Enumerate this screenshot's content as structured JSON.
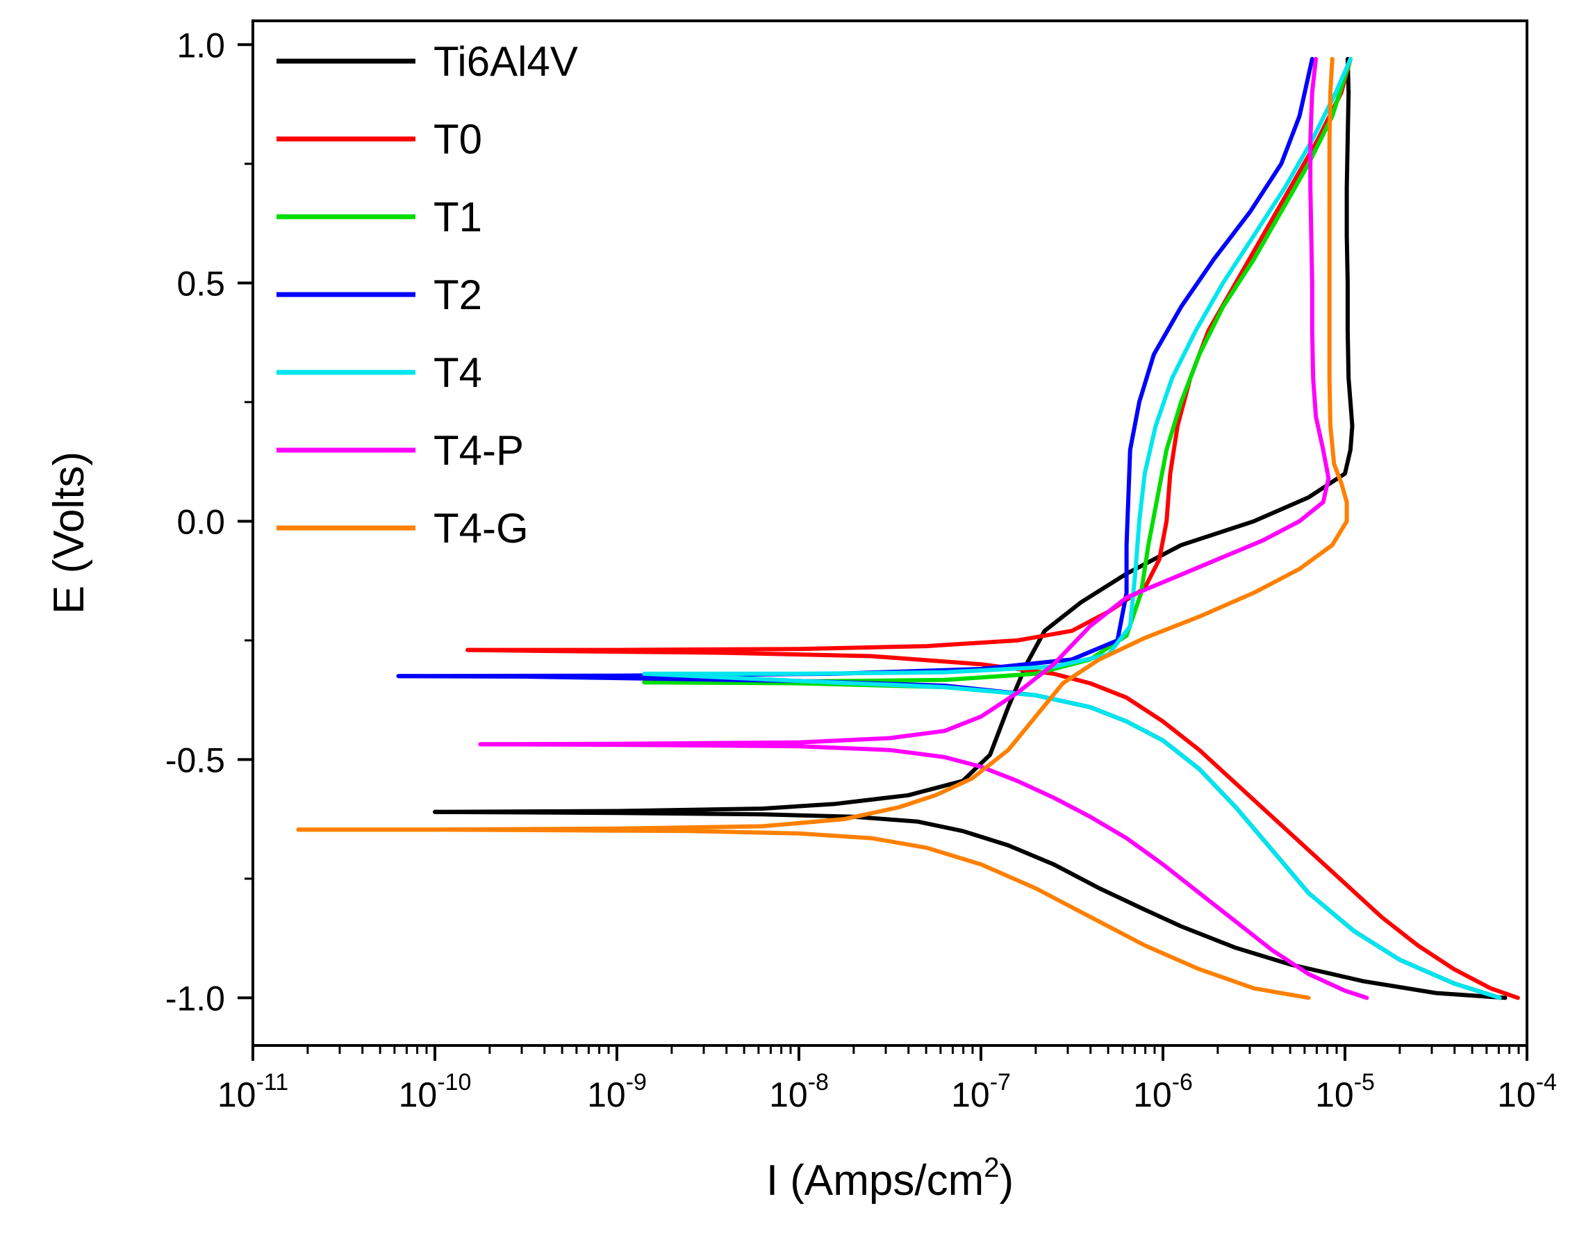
{
  "chart_data": {
    "type": "line",
    "title": "",
    "xlabel": "I (Amps/cm",
    "xlabel_sup": "2",
    "xlabel_suffix": ")",
    "ylabel": "E (Volts)",
    "xscale": "log",
    "xlim_exp": [
      -11,
      -4
    ],
    "ylim": [
      -1.1,
      1.05
    ],
    "x_ticks": [
      {
        "base": "10",
        "exp": "-11"
      },
      {
        "base": "10",
        "exp": "-10"
      },
      {
        "base": "10",
        "exp": "-9"
      },
      {
        "base": "10",
        "exp": "-8"
      },
      {
        "base": "10",
        "exp": "-7"
      },
      {
        "base": "10",
        "exp": "-6"
      },
      {
        "base": "10",
        "exp": "-5"
      },
      {
        "base": "10",
        "exp": "-4"
      }
    ],
    "y_ticks": [
      {
        "value": 1.0,
        "label": "1.0"
      },
      {
        "value": 0.5,
        "label": "0.5"
      },
      {
        "value": 0.0,
        "label": "0.0"
      },
      {
        "value": -0.5,
        "label": "-0.5"
      },
      {
        "value": -1.0,
        "label": "-1.0"
      }
    ],
    "legend_position": "top-left",
    "series": [
      {
        "name": "Ti6Al4V",
        "color": "#000000",
        "cathodic": [
          [
            -4.12,
            -1.0
          ],
          [
            -4.5,
            -0.99
          ],
          [
            -4.9,
            -0.965
          ],
          [
            -5.3,
            -0.93
          ],
          [
            -5.6,
            -0.895
          ],
          [
            -5.9,
            -0.85
          ],
          [
            -6.1,
            -0.815
          ],
          [
            -6.35,
            -0.77
          ],
          [
            -6.6,
            -0.72
          ],
          [
            -6.85,
            -0.68
          ],
          [
            -7.1,
            -0.65
          ],
          [
            -7.35,
            -0.63
          ],
          [
            -7.7,
            -0.62
          ],
          [
            -8.2,
            -0.615
          ],
          [
            -9.0,
            -0.612
          ],
          [
            -10.0,
            -0.61
          ]
        ],
        "anodic": [
          [
            -10.0,
            -0.61
          ],
          [
            -9.0,
            -0.608
          ],
          [
            -8.2,
            -0.603
          ],
          [
            -7.8,
            -0.593
          ],
          [
            -7.4,
            -0.575
          ],
          [
            -7.1,
            -0.545
          ],
          [
            -6.95,
            -0.49
          ],
          [
            -6.85,
            -0.39
          ],
          [
            -6.75,
            -0.3
          ],
          [
            -6.65,
            -0.23
          ],
          [
            -6.45,
            -0.17
          ],
          [
            -6.2,
            -0.11
          ],
          [
            -5.9,
            -0.05
          ],
          [
            -5.5,
            0.0
          ],
          [
            -5.2,
            0.05
          ],
          [
            -5.0,
            0.1
          ],
          [
            -4.97,
            0.15
          ],
          [
            -4.96,
            0.2
          ],
          [
            -4.97,
            0.25
          ],
          [
            -4.98,
            0.3
          ],
          [
            -4.985,
            0.4
          ],
          [
            -4.985,
            0.5
          ],
          [
            -4.99,
            0.6
          ],
          [
            -4.99,
            0.7
          ],
          [
            -4.985,
            0.8
          ],
          [
            -4.98,
            0.9
          ],
          [
            -4.985,
            0.97
          ]
        ]
      },
      {
        "name": "T0",
        "color": "#ff0000",
        "cathodic": [
          [
            -4.05,
            -1.0
          ],
          [
            -4.2,
            -0.98
          ],
          [
            -4.4,
            -0.94
          ],
          [
            -4.6,
            -0.89
          ],
          [
            -4.8,
            -0.83
          ],
          [
            -5.0,
            -0.76
          ],
          [
            -5.2,
            -0.69
          ],
          [
            -5.4,
            -0.62
          ],
          [
            -5.6,
            -0.55
          ],
          [
            -5.8,
            -0.48
          ],
          [
            -6.0,
            -0.42
          ],
          [
            -6.2,
            -0.37
          ],
          [
            -6.4,
            -0.34
          ],
          [
            -6.6,
            -0.32
          ],
          [
            -7.0,
            -0.3
          ],
          [
            -7.6,
            -0.283
          ],
          [
            -8.4,
            -0.276
          ],
          [
            -9.4,
            -0.272
          ],
          [
            -9.82,
            -0.27
          ]
        ],
        "anodic": [
          [
            -9.82,
            -0.27
          ],
          [
            -9.0,
            -0.27
          ],
          [
            -8.0,
            -0.268
          ],
          [
            -7.3,
            -0.262
          ],
          [
            -6.8,
            -0.25
          ],
          [
            -6.5,
            -0.23
          ],
          [
            -6.3,
            -0.19
          ],
          [
            -6.1,
            -0.14
          ],
          [
            -6.02,
            -0.08
          ],
          [
            -5.98,
            0.0
          ],
          [
            -5.96,
            0.1
          ],
          [
            -5.92,
            0.2
          ],
          [
            -5.85,
            0.3
          ],
          [
            -5.75,
            0.4
          ],
          [
            -5.6,
            0.5
          ],
          [
            -5.45,
            0.6
          ],
          [
            -5.3,
            0.7
          ],
          [
            -5.15,
            0.8
          ],
          [
            -5.02,
            0.9
          ],
          [
            -4.97,
            0.97
          ]
        ]
      },
      {
        "name": "T1",
        "color": "#00dd00",
        "cathodic": [
          [
            -4.15,
            -1.0
          ],
          [
            -4.4,
            -0.97
          ],
          [
            -4.7,
            -0.92
          ],
          [
            -4.95,
            -0.86
          ],
          [
            -5.2,
            -0.78
          ],
          [
            -5.4,
            -0.69
          ],
          [
            -5.6,
            -0.6
          ],
          [
            -5.8,
            -0.52
          ],
          [
            -6.0,
            -0.46
          ],
          [
            -6.2,
            -0.42
          ],
          [
            -6.4,
            -0.39
          ],
          [
            -6.7,
            -0.365
          ],
          [
            -7.2,
            -0.348
          ],
          [
            -8.0,
            -0.34
          ],
          [
            -8.85,
            -0.338
          ]
        ],
        "anodic": [
          [
            -8.85,
            -0.338
          ],
          [
            -8.0,
            -0.336
          ],
          [
            -7.2,
            -0.333
          ],
          [
            -6.7,
            -0.32
          ],
          [
            -6.4,
            -0.29
          ],
          [
            -6.2,
            -0.24
          ],
          [
            -6.12,
            -0.15
          ],
          [
            -6.08,
            -0.05
          ],
          [
            -6.03,
            0.05
          ],
          [
            -5.98,
            0.15
          ],
          [
            -5.9,
            0.25
          ],
          [
            -5.8,
            0.35
          ],
          [
            -5.67,
            0.45
          ],
          [
            -5.5,
            0.55
          ],
          [
            -5.35,
            0.65
          ],
          [
            -5.2,
            0.75
          ],
          [
            -5.07,
            0.85
          ],
          [
            -4.97,
            0.97
          ]
        ]
      },
      {
        "name": "T2",
        "color": "#0000ff",
        "cathodic": [
          [
            -4.15,
            -1.0
          ],
          [
            -4.4,
            -0.97
          ],
          [
            -4.7,
            -0.92
          ],
          [
            -4.95,
            -0.86
          ],
          [
            -5.2,
            -0.78
          ],
          [
            -5.4,
            -0.69
          ],
          [
            -5.6,
            -0.6
          ],
          [
            -5.8,
            -0.52
          ],
          [
            -6.0,
            -0.46
          ],
          [
            -6.2,
            -0.42
          ],
          [
            -6.4,
            -0.39
          ],
          [
            -6.7,
            -0.365
          ],
          [
            -7.2,
            -0.345
          ],
          [
            -8.0,
            -0.335
          ],
          [
            -9.5,
            -0.326
          ],
          [
            -10.2,
            -0.325
          ]
        ],
        "anodic": [
          [
            -10.2,
            -0.325
          ],
          [
            -9.0,
            -0.324
          ],
          [
            -7.8,
            -0.32
          ],
          [
            -7.0,
            -0.31
          ],
          [
            -6.5,
            -0.29
          ],
          [
            -6.25,
            -0.25
          ],
          [
            -6.2,
            -0.15
          ],
          [
            -6.2,
            -0.05
          ],
          [
            -6.19,
            0.05
          ],
          [
            -6.18,
            0.15
          ],
          [
            -6.13,
            0.25
          ],
          [
            -6.05,
            0.35
          ],
          [
            -5.9,
            0.45
          ],
          [
            -5.72,
            0.55
          ],
          [
            -5.52,
            0.65
          ],
          [
            -5.35,
            0.75
          ],
          [
            -5.25,
            0.85
          ],
          [
            -5.18,
            0.97
          ]
        ]
      },
      {
        "name": "T4",
        "color": "#00e5ee",
        "cathodic": [
          [
            -4.15,
            -1.0
          ],
          [
            -4.4,
            -0.97
          ],
          [
            -4.7,
            -0.92
          ],
          [
            -4.95,
            -0.86
          ],
          [
            -5.2,
            -0.78
          ],
          [
            -5.4,
            -0.69
          ],
          [
            -5.6,
            -0.6
          ],
          [
            -5.8,
            -0.52
          ],
          [
            -6.0,
            -0.46
          ],
          [
            -6.2,
            -0.42
          ],
          [
            -6.4,
            -0.39
          ],
          [
            -6.7,
            -0.365
          ],
          [
            -7.2,
            -0.348
          ],
          [
            -8.0,
            -0.335
          ],
          [
            -8.85,
            -0.32
          ]
        ],
        "anodic": [
          [
            -8.85,
            -0.32
          ],
          [
            -8.0,
            -0.32
          ],
          [
            -7.2,
            -0.317
          ],
          [
            -6.6,
            -0.305
          ],
          [
            -6.3,
            -0.28
          ],
          [
            -6.18,
            -0.22
          ],
          [
            -6.15,
            -0.1
          ],
          [
            -6.13,
            0.0
          ],
          [
            -6.1,
            0.1
          ],
          [
            -6.04,
            0.2
          ],
          [
            -5.95,
            0.3
          ],
          [
            -5.82,
            0.4
          ],
          [
            -5.67,
            0.5
          ],
          [
            -5.5,
            0.6
          ],
          [
            -5.33,
            0.7
          ],
          [
            -5.18,
            0.8
          ],
          [
            -5.05,
            0.9
          ],
          [
            -4.97,
            0.97
          ]
        ]
      },
      {
        "name": "T4-P",
        "color": "#ff00ff",
        "cathodic": [
          [
            -4.88,
            -1.0
          ],
          [
            -5.0,
            -0.985
          ],
          [
            -5.2,
            -0.95
          ],
          [
            -5.4,
            -0.9
          ],
          [
            -5.6,
            -0.84
          ],
          [
            -5.8,
            -0.78
          ],
          [
            -6.0,
            -0.72
          ],
          [
            -6.2,
            -0.665
          ],
          [
            -6.4,
            -0.62
          ],
          [
            -6.6,
            -0.58
          ],
          [
            -6.8,
            -0.545
          ],
          [
            -7.0,
            -0.515
          ],
          [
            -7.2,
            -0.495
          ],
          [
            -7.5,
            -0.48
          ],
          [
            -8.0,
            -0.472
          ],
          [
            -9.0,
            -0.469
          ],
          [
            -9.75,
            -0.468
          ]
        ],
        "anodic": [
          [
            -9.75,
            -0.468
          ],
          [
            -9.0,
            -0.467
          ],
          [
            -8.0,
            -0.464
          ],
          [
            -7.5,
            -0.455
          ],
          [
            -7.2,
            -0.44
          ],
          [
            -7.0,
            -0.41
          ],
          [
            -6.8,
            -0.36
          ],
          [
            -6.6,
            -0.3
          ],
          [
            -6.4,
            -0.22
          ],
          [
            -6.2,
            -0.16
          ],
          [
            -5.95,
            -0.12
          ],
          [
            -5.7,
            -0.08
          ],
          [
            -5.45,
            -0.04
          ],
          [
            -5.25,
            0.0
          ],
          [
            -5.12,
            0.04
          ],
          [
            -5.09,
            0.09
          ],
          [
            -5.12,
            0.15
          ],
          [
            -5.16,
            0.22
          ],
          [
            -5.175,
            0.3
          ],
          [
            -5.18,
            0.4
          ],
          [
            -5.18,
            0.5
          ],
          [
            -5.185,
            0.6
          ],
          [
            -5.19,
            0.7
          ],
          [
            -5.19,
            0.8
          ],
          [
            -5.18,
            0.9
          ],
          [
            -5.16,
            0.97
          ]
        ]
      },
      {
        "name": "T4-G",
        "color": "#ff8000",
        "cathodic": [
          [
            -5.2,
            -1.0
          ],
          [
            -5.5,
            -0.98
          ],
          [
            -5.8,
            -0.94
          ],
          [
            -6.1,
            -0.89
          ],
          [
            -6.4,
            -0.83
          ],
          [
            -6.7,
            -0.77
          ],
          [
            -7.0,
            -0.72
          ],
          [
            -7.3,
            -0.685
          ],
          [
            -7.6,
            -0.665
          ],
          [
            -8.0,
            -0.655
          ],
          [
            -8.6,
            -0.65
          ],
          [
            -9.5,
            -0.648
          ],
          [
            -10.0,
            -0.647
          ],
          [
            -10.75,
            -0.647
          ]
        ],
        "anodic": [
          [
            -10.75,
            -0.647
          ],
          [
            -10.0,
            -0.647
          ],
          [
            -9.0,
            -0.645
          ],
          [
            -8.2,
            -0.64
          ],
          [
            -7.75,
            -0.625
          ],
          [
            -7.45,
            -0.6
          ],
          [
            -7.25,
            -0.575
          ],
          [
            -7.05,
            -0.54
          ],
          [
            -6.85,
            -0.48
          ],
          [
            -6.7,
            -0.41
          ],
          [
            -6.55,
            -0.34
          ],
          [
            -6.35,
            -0.29
          ],
          [
            -6.1,
            -0.245
          ],
          [
            -5.8,
            -0.2
          ],
          [
            -5.5,
            -0.15
          ],
          [
            -5.25,
            -0.1
          ],
          [
            -5.07,
            -0.05
          ],
          [
            -4.99,
            0.0
          ],
          [
            -4.99,
            0.04
          ],
          [
            -5.02,
            0.08
          ],
          [
            -5.06,
            0.12
          ],
          [
            -5.08,
            0.2
          ],
          [
            -5.085,
            0.3
          ],
          [
            -5.085,
            0.4
          ],
          [
            -5.085,
            0.5
          ],
          [
            -5.085,
            0.6
          ],
          [
            -5.085,
            0.7
          ],
          [
            -5.085,
            0.8
          ],
          [
            -5.08,
            0.9
          ],
          [
            -5.07,
            0.97
          ]
        ]
      }
    ]
  }
}
